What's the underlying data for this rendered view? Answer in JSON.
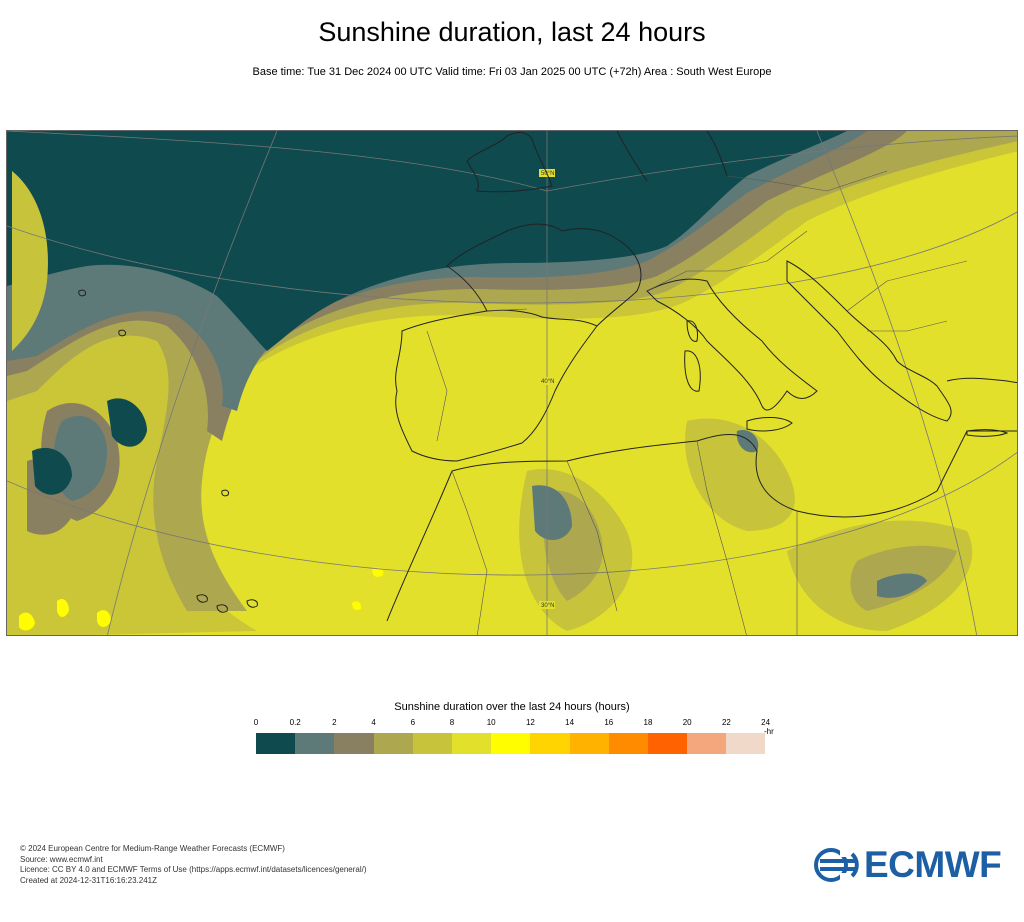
{
  "header": {
    "title": "Sunshine duration, last 24 hours",
    "subtitle": "Base time: Tue 31 Dec 2024 00 UTC Valid time: Fri 03 Jan 2025 00 UTC (+72h) Area : South West Europe"
  },
  "map": {
    "graticule_labels": [
      "50°N",
      "40°N",
      "30°N"
    ]
  },
  "legend": {
    "title": "Sunshine duration over the last 24 hours (hours)",
    "unit": "-hr",
    "ticks": [
      "0",
      "0.2",
      "2",
      "4",
      "6",
      "8",
      "10",
      "12",
      "14",
      "16",
      "18",
      "20",
      "22",
      "24"
    ],
    "colors": [
      "#0f4a4e",
      "#5e7a78",
      "#888060",
      "#ada850",
      "#c7c33a",
      "#e3e02c",
      "#fffd00",
      "#ffd400",
      "#ffb300",
      "#ff8c00",
      "#ff6200",
      "#f4a67c",
      "#f0d9c9"
    ]
  },
  "footer": {
    "lines": [
      "© 2024 European Centre for Medium-Range Weather Forecasts (ECMWF)",
      "Source: www.ecmwf.int",
      "Licence: CC BY 4.0 and ECMWF Terms of Use (https://apps.ecmwf.int/datasets/licences/general/)",
      "Created at 2024-12-31T16:16:23.241Z"
    ]
  },
  "logo": {
    "text": "ECMWF",
    "color": "#1c5fa4"
  }
}
